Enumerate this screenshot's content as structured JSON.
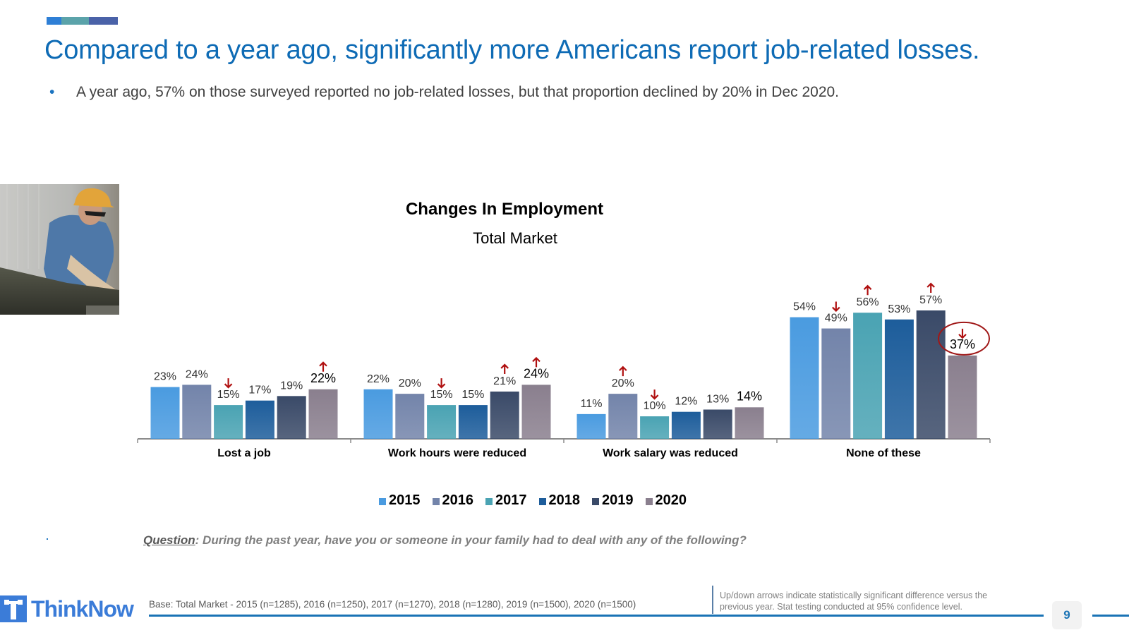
{
  "slide": {
    "title": "Compared to a year ago, significantly more Americans report job-related losses.",
    "bullet": "A year ago, 57% on those surveyed reported no job-related losses, but that proportion declined by 20% in Dec 2020.",
    "accent_colors": [
      "#2E7FD6",
      "#5BA3AA",
      "#4A62A8"
    ],
    "photo_alt": "construction worker in hard hat",
    "question_label": "Question",
    "question_text": ": During the past year, have you or someone in your family had to deal with any of the following?",
    "logo_text": "ThinkNow",
    "base_text": "Base: Total Market - 2015 (n=1285), 2016 (n=1250), 2017 (n=1270), 2018 (n=1280), 2019 (n=1500), 2020 (n=1500)",
    "note_text": "Up/down arrows indicate statistically significant difference versus the previous year.  Stat testing conducted at 95% confidence level.",
    "page_number": "9"
  },
  "chart_data": {
    "type": "bar",
    "title": "Changes In Employment",
    "subtitle": "Total Market",
    "xlabel": "",
    "ylabel": "",
    "ylim": [
      0,
      60
    ],
    "grid": false,
    "legend_position": "bottom",
    "categories": [
      "Lost a job",
      "Work hours were reduced",
      "Work salary was reduced",
      "None of these"
    ],
    "series": [
      {
        "name": "2015",
        "color": "#4A9BE0",
        "values": [
          23,
          22,
          11,
          54
        ],
        "labels": [
          "23%",
          "22%",
          "11%",
          "54%"
        ],
        "arrows": [
          "",
          "",
          "",
          ""
        ]
      },
      {
        "name": "2016",
        "color": "#7384AA",
        "values": [
          24,
          20,
          20,
          49
        ],
        "labels": [
          "24%",
          "20%",
          "20%",
          "49%"
        ],
        "arrows": [
          "",
          "",
          "up",
          "down"
        ]
      },
      {
        "name": "2017",
        "color": "#4AA3B3",
        "values": [
          15,
          15,
          10,
          56
        ],
        "labels": [
          "15%",
          "15%",
          "10%",
          "56%"
        ],
        "arrows": [
          "down",
          "down",
          "down",
          "up"
        ]
      },
      {
        "name": "2018",
        "color": "#1D5D9B",
        "values": [
          17,
          15,
          12,
          53
        ],
        "labels": [
          "17%",
          "15%",
          "12%",
          "53%"
        ],
        "arrows": [
          "",
          "",
          "",
          ""
        ]
      },
      {
        "name": "2019",
        "color": "#3A4A68",
        "values": [
          19,
          21,
          13,
          57
        ],
        "labels": [
          "19%",
          "21%",
          "13%",
          "57%"
        ],
        "arrows": [
          "",
          "up",
          "",
          "up"
        ]
      },
      {
        "name": "2020",
        "color": "#8A7F8E",
        "values": [
          22,
          24,
          14,
          37
        ],
        "labels": [
          "22%",
          "24%",
          "14%",
          "37%"
        ],
        "arrows": [
          "up",
          "up",
          "",
          "down"
        ]
      }
    ],
    "highlight": {
      "category": "None of these",
      "series": "2020",
      "shape": "ellipse",
      "color": "#A01818"
    },
    "arrow_color": "#B01010"
  }
}
